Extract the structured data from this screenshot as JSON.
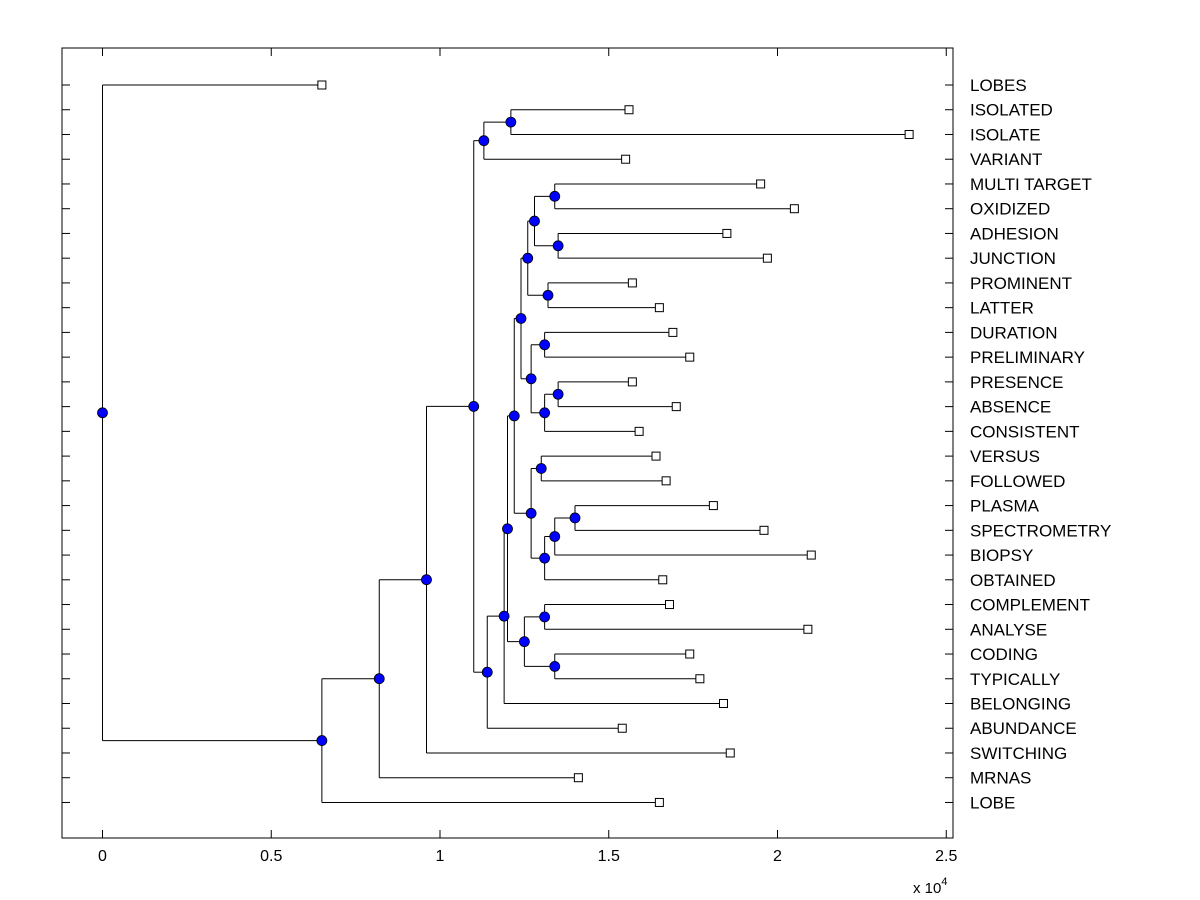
{
  "chart_data": {
    "type": "dendrogram",
    "orientation": "horizontal",
    "xlim": [
      -0.12,
      2.52
    ],
    "xticks": [
      0,
      0.5,
      1,
      1.5,
      2,
      2.5
    ],
    "xtick_labels": [
      "0",
      "0.5",
      "1",
      "1.5",
      "2",
      "2.5"
    ],
    "x_multiplier_base": "x 10",
    "x_multiplier_exponent": "4",
    "node_color": "#0000ff",
    "leaves": [
      {
        "label": "LOBES",
        "x": 0.65
      },
      {
        "label": "ISOLATED",
        "x": 1.56
      },
      {
        "label": "ISOLATE",
        "x": 2.39
      },
      {
        "label": "VARIANT",
        "x": 1.55
      },
      {
        "label": "MULTI TARGET",
        "x": 1.95
      },
      {
        "label": "OXIDIZED",
        "x": 2.05
      },
      {
        "label": "ADHESION",
        "x": 1.85
      },
      {
        "label": "JUNCTION",
        "x": 1.97
      },
      {
        "label": "PROMINENT",
        "x": 1.57
      },
      {
        "label": "LATTER",
        "x": 1.65
      },
      {
        "label": "DURATION",
        "x": 1.69
      },
      {
        "label": "PRELIMINARY",
        "x": 1.74
      },
      {
        "label": "PRESENCE",
        "x": 1.57
      },
      {
        "label": "ABSENCE",
        "x": 1.7
      },
      {
        "label": "CONSISTENT",
        "x": 1.59
      },
      {
        "label": "VERSUS",
        "x": 1.64
      },
      {
        "label": "FOLLOWED",
        "x": 1.67
      },
      {
        "label": "PLASMA",
        "x": 1.81
      },
      {
        "label": "SPECTROMETRY",
        "x": 1.96
      },
      {
        "label": "BIOPSY",
        "x": 2.1
      },
      {
        "label": "OBTAINED",
        "x": 1.66
      },
      {
        "label": "COMPLEMENT",
        "x": 1.68
      },
      {
        "label": "ANALYSE",
        "x": 2.09
      },
      {
        "label": "CODING",
        "x": 1.74
      },
      {
        "label": "TYPICALLY",
        "x": 1.77
      },
      {
        "label": "BELONGING",
        "x": 1.84
      },
      {
        "label": "ABUNDANCE",
        "x": 1.54
      },
      {
        "label": "SWITCHING",
        "x": 1.86
      },
      {
        "label": "MRNAS",
        "x": 1.41
      },
      {
        "label": "LOBE",
        "x": 1.65
      }
    ],
    "nodes": [
      {
        "id": "n_isol",
        "x": 1.21,
        "children": [
          "ISOLATED",
          "ISOLATE"
        ]
      },
      {
        "id": "n_var",
        "x": 1.13,
        "children": [
          "n_isol",
          "VARIANT"
        ]
      },
      {
        "id": "n_mo",
        "x": 1.34,
        "children": [
          "MULTI TARGET",
          "OXIDIZED"
        ]
      },
      {
        "id": "n_aj",
        "x": 1.35,
        "children": [
          "ADHESION",
          "JUNCTION"
        ]
      },
      {
        "id": "n_moaj",
        "x": 1.28,
        "children": [
          "n_mo",
          "n_aj"
        ]
      },
      {
        "id": "n_pl",
        "x": 1.32,
        "children": [
          "PROMINENT",
          "LATTER"
        ]
      },
      {
        "id": "n_g1",
        "x": 1.26,
        "children": [
          "n_moaj",
          "n_pl"
        ]
      },
      {
        "id": "n_dp",
        "x": 1.31,
        "children": [
          "DURATION",
          "PRELIMINARY"
        ]
      },
      {
        "id": "n_pa",
        "x": 1.35,
        "children": [
          "PRESENCE",
          "ABSENCE"
        ]
      },
      {
        "id": "n_pac",
        "x": 1.31,
        "children": [
          "n_pa",
          "CONSISTENT"
        ]
      },
      {
        "id": "n_dppac",
        "x": 1.27,
        "children": [
          "n_dp",
          "n_pac"
        ]
      },
      {
        "id": "n_g2",
        "x": 1.24,
        "children": [
          "n_g1",
          "n_dppac"
        ]
      },
      {
        "id": "n_vf",
        "x": 1.3,
        "children": [
          "VERSUS",
          "FOLLOWED"
        ]
      },
      {
        "id": "n_ps",
        "x": 1.4,
        "children": [
          "PLASMA",
          "SPECTROMETRY"
        ]
      },
      {
        "id": "n_psb",
        "x": 1.34,
        "children": [
          "n_ps",
          "BIOPSY"
        ]
      },
      {
        "id": "n_psbo",
        "x": 1.31,
        "children": [
          "n_psb",
          "OBTAINED"
        ]
      },
      {
        "id": "n_g3",
        "x": 1.27,
        "children": [
          "n_vf",
          "n_psbo"
        ]
      },
      {
        "id": "n_g4",
        "x": 1.22,
        "children": [
          "n_g2",
          "n_g3"
        ]
      },
      {
        "id": "n_ca",
        "x": 1.31,
        "children": [
          "COMPLEMENT",
          "ANALYSE"
        ]
      },
      {
        "id": "n_ct",
        "x": 1.34,
        "children": [
          "CODING",
          "TYPICALLY"
        ]
      },
      {
        "id": "n_cact",
        "x": 1.25,
        "children": [
          "n_ca",
          "n_ct"
        ]
      },
      {
        "id": "n_g5",
        "x": 1.2,
        "children": [
          "n_g4",
          "n_cact"
        ]
      },
      {
        "id": "n_g6",
        "x": 1.19,
        "children": [
          "n_g5",
          "BELONGING"
        ]
      },
      {
        "id": "n_g7",
        "x": 1.14,
        "children": [
          "n_g6",
          "ABUNDANCE"
        ]
      },
      {
        "id": "n_g8",
        "x": 1.1,
        "children": [
          "n_var",
          "n_g7"
        ]
      },
      {
        "id": "n_g9",
        "x": 0.96,
        "children": [
          "n_g8",
          "SWITCHING"
        ]
      },
      {
        "id": "n_g10",
        "x": 0.82,
        "children": [
          "n_g9",
          "MRNAS"
        ]
      },
      {
        "id": "n_g11",
        "x": 0.65,
        "children": [
          "n_g10",
          "LOBE"
        ]
      },
      {
        "id": "n_root",
        "x": 0.0,
        "children": [
          "LOBES",
          "n_g11"
        ]
      }
    ]
  }
}
